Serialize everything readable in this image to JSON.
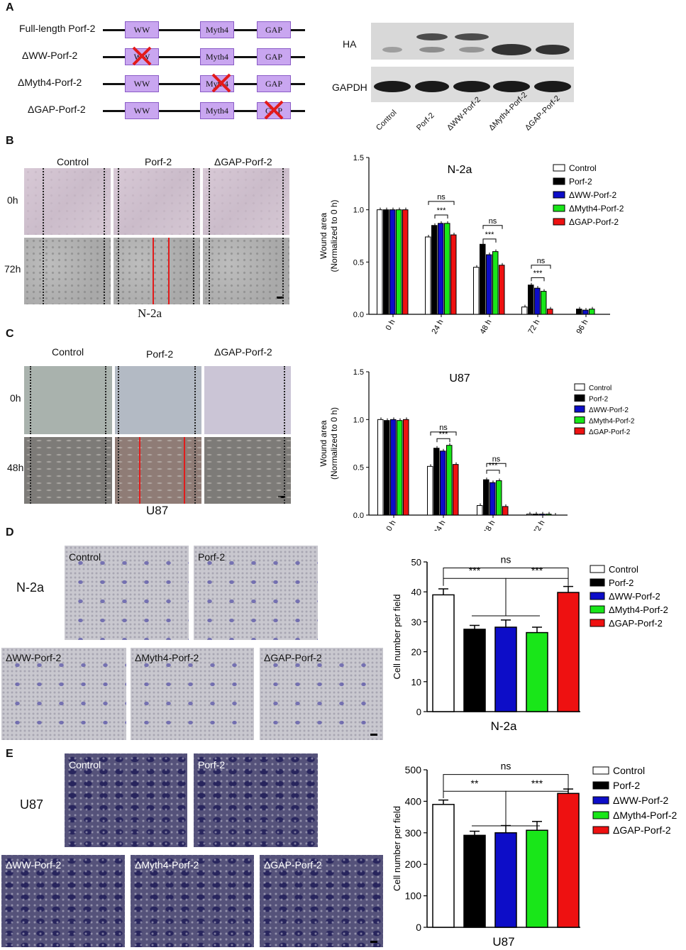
{
  "panels": {
    "a": "A",
    "b": "B",
    "c": "C",
    "d": "D",
    "e": "E"
  },
  "constructs": [
    {
      "name": "Full-length Porf-2",
      "deleted": ""
    },
    {
      "name": "ΔWW-Porf-2",
      "deleted": "WW"
    },
    {
      "name": "ΔMyth4-Porf-2",
      "deleted": "Myth4"
    },
    {
      "name": "ΔGAP-Porf-2",
      "deleted": "GAP"
    }
  ],
  "domains": {
    "ww": "WW",
    "myth4": "Myth4",
    "gap": "GAP"
  },
  "western": {
    "rows": [
      "HA",
      "GAPDH"
    ],
    "lanes": [
      "Control",
      "Porf-2",
      "ΔWW-Porf-2",
      "ΔMyth4-Porf-2",
      "ΔGAP-Porf-2"
    ]
  },
  "wound_n2a": {
    "cols": [
      "Control",
      "Porf-2",
      "ΔGAP-Porf-2"
    ],
    "rows": [
      "0h",
      "72h"
    ],
    "cell": "N-2a"
  },
  "wound_u87": {
    "cols": [
      "Control",
      "Porf-2",
      "ΔGAP-Porf-2"
    ],
    "rows": [
      "0h",
      "48h"
    ],
    "cell": "U87"
  },
  "transwell_n2a": {
    "cell": "N-2a",
    "labels": [
      "Control",
      "Porf-2",
      "ΔWW-Porf-2",
      "ΔMyth4-Porf-2",
      "ΔGAP-Porf-2"
    ]
  },
  "transwell_u87": {
    "cell": "U87",
    "labels": [
      "Control",
      "Porf-2",
      "ΔWW-Porf-2",
      "ΔMyth4-Porf-2",
      "ΔGAP-Porf-2"
    ]
  },
  "colors": {
    "control": "#ffffff",
    "porf2": "#000000",
    "ww": "#0d0dc8",
    "myth4": "#19e619",
    "gap": "#ee1111",
    "domain_fill": "#c9a6f0",
    "domain_stroke": "#8a5cc6",
    "cross": "#e31a1a"
  },
  "chart_data": [
    {
      "id": "B",
      "type": "bar",
      "title": "N-2a",
      "ylabel": "Wound area (Normalized to 0 h)",
      "ylim": [
        0,
        1.5
      ],
      "yticks": [
        "0.0",
        "0.5",
        "1.0",
        "1.5"
      ],
      "categories": [
        "0 h",
        "24 h",
        "48 h",
        "72 h",
        "96 h"
      ],
      "series": [
        {
          "name": "Control",
          "values": [
            1.0,
            0.74,
            0.45,
            0.07,
            null
          ]
        },
        {
          "name": "Porf-2",
          "values": [
            1.0,
            0.85,
            0.67,
            0.28,
            0.05
          ]
        },
        {
          "name": "ΔWW-Porf-2",
          "values": [
            1.0,
            0.87,
            0.57,
            0.25,
            0.04
          ]
        },
        {
          "name": "ΔMyth4-Porf-2",
          "values": [
            1.0,
            0.87,
            0.6,
            0.22,
            0.05
          ]
        },
        {
          "name": "ΔGAP-Porf-2",
          "values": [
            1.0,
            0.76,
            0.47,
            0.05,
            null
          ]
        }
      ],
      "annotations": [
        "ns",
        "***",
        "ns",
        "***",
        "ns",
        "***"
      ],
      "legend": "top-right"
    },
    {
      "id": "C",
      "type": "bar",
      "title": "U87",
      "ylabel": "Wound area (Normalized to 0 h)",
      "ylim": [
        0,
        1.5
      ],
      "yticks": [
        "0.0",
        "0.5",
        "1.0",
        "1.5"
      ],
      "categories": [
        "0 h",
        "24 h",
        "48 h",
        "72 h"
      ],
      "series": [
        {
          "name": "Control",
          "values": [
            1.0,
            0.51,
            0.1,
            0.01
          ]
        },
        {
          "name": "Porf-2",
          "values": [
            0.99,
            0.7,
            0.37,
            0.01
          ]
        },
        {
          "name": "ΔWW-Porf-2",
          "values": [
            1.0,
            0.67,
            0.34,
            0.01
          ]
        },
        {
          "name": "ΔMyth4-Porf-2",
          "values": [
            0.99,
            0.73,
            0.36,
            0.01
          ]
        },
        {
          "name": "ΔGAP-Porf-2",
          "values": [
            1.0,
            0.53,
            0.09,
            0.0
          ]
        }
      ],
      "annotations": [
        "ns",
        "***",
        "ns",
        "***"
      ],
      "legend": "top-right"
    },
    {
      "id": "D",
      "type": "bar",
      "xlabel": "N-2a",
      "ylabel": "Cell number per field",
      "ylim": [
        0,
        50
      ],
      "yticks": [
        "0",
        "10",
        "20",
        "30",
        "40",
        "50"
      ],
      "categories": [
        "Control",
        "Porf-2",
        "ΔWW-Porf-2",
        "ΔMyth4-Porf-2",
        "ΔGAP-Porf-2"
      ],
      "values": [
        39,
        27.5,
        28.2,
        26.4,
        39.8
      ],
      "errors": [
        2,
        1.3,
        2.4,
        1.8,
        2
      ],
      "annotations": [
        "ns",
        "***",
        "***"
      ],
      "legend": "top-right"
    },
    {
      "id": "E",
      "type": "bar",
      "xlabel": "U87",
      "ylabel": "Cell number per field",
      "ylim": [
        0,
        500
      ],
      "yticks": [
        "0",
        "100",
        "200",
        "300",
        "400",
        "500"
      ],
      "categories": [
        "Control",
        "Porf-2",
        "ΔWW-Porf-2",
        "ΔMyth4-Porf-2",
        "ΔGAP-Porf-2"
      ],
      "values": [
        390,
        292,
        300,
        308,
        425
      ],
      "errors": [
        14,
        13,
        23,
        28,
        14
      ],
      "annotations": [
        "ns",
        "**",
        "***"
      ],
      "legend": "top-right"
    }
  ]
}
